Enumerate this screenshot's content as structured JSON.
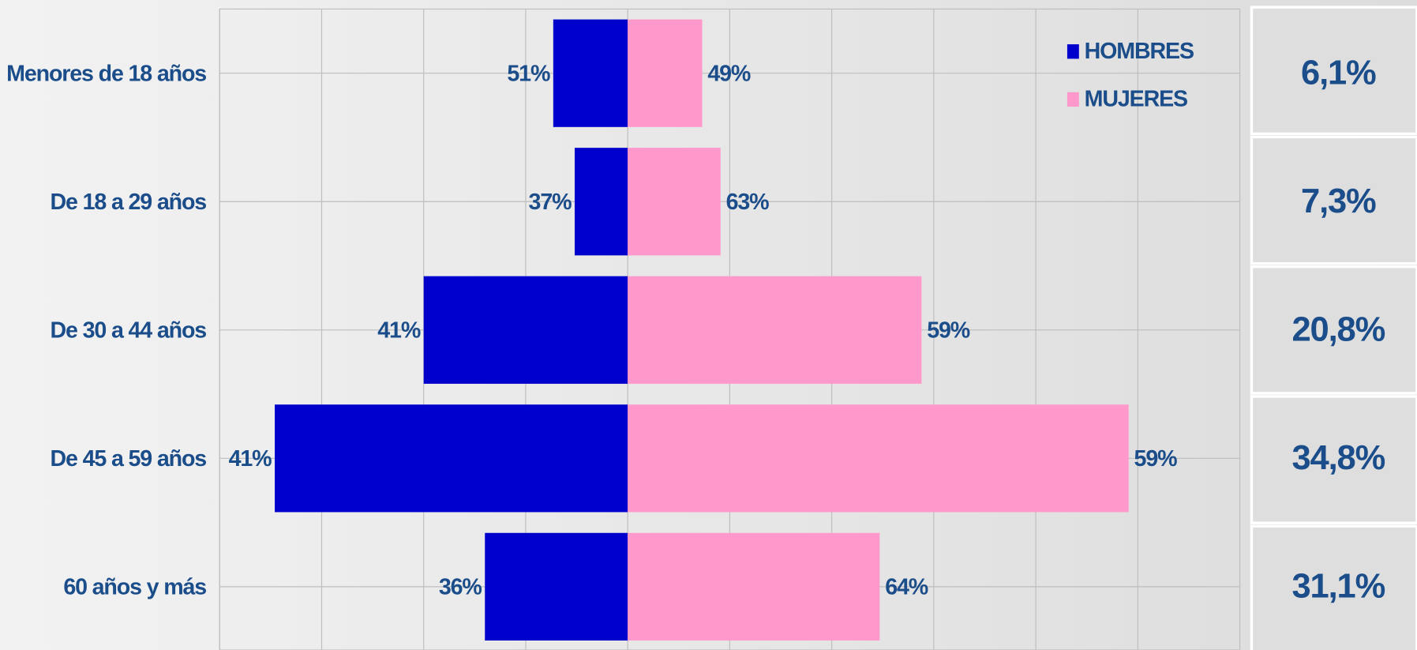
{
  "chart_data": {
    "type": "pyramid",
    "categories": [
      "Menores de 18 años",
      "De 18 a 29 años",
      "De 30 a 44 años",
      "De 45 a 59 años",
      "60 años y más"
    ],
    "series": [
      {
        "name": "HOMBRES",
        "color": "#0000cc",
        "values": [
          -0.73,
          -0.52,
          -2.0,
          -3.46,
          -1.4
        ],
        "value_labels": [
          "51%",
          "37%",
          "41%",
          "41%",
          "36%"
        ]
      },
      {
        "name": "MUJERES",
        "color": "#ff99cc",
        "values": [
          0.73,
          0.91,
          2.88,
          4.91,
          2.47
        ],
        "value_labels": [
          "49%",
          "63%",
          "59%",
          "59%",
          "64%"
        ]
      }
    ],
    "xlim": [
      -4,
      6
    ],
    "xticks": [
      -4,
      -3,
      -2,
      -1,
      0,
      1,
      2,
      3,
      4,
      5,
      6
    ],
    "grid": true,
    "totals": [
      "6,1%",
      "7,3%",
      "20,8%",
      "34,8%",
      "31,1%"
    ]
  }
}
